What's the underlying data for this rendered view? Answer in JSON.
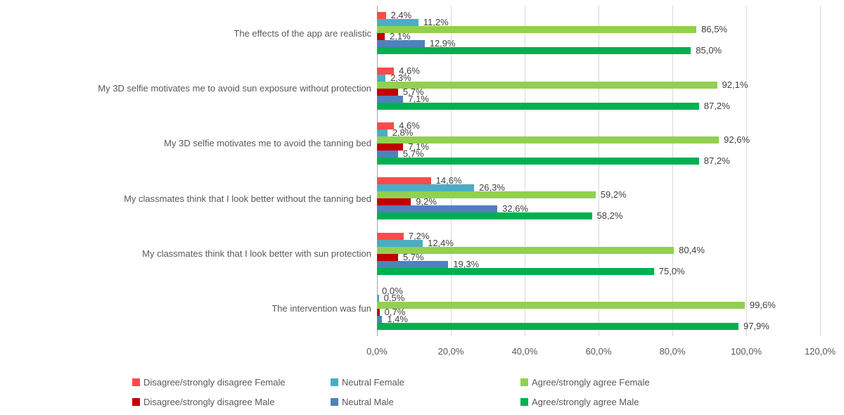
{
  "chart_data": {
    "type": "bar",
    "orientation": "horizontal",
    "title": "",
    "xlabel": "",
    "ylabel": "",
    "grid": true,
    "categories": [
      "The effects of the app are realistic",
      "My 3D selfie motivates me to avoid sun exposure without protection",
      "My 3D selfie motivates me to avoid the tanning bed",
      "My classmates think that I look better without the tanning bed",
      "My classmates think that I look better with sun protection",
      "The intervention was fun"
    ],
    "series": [
      {
        "name": "Disagree/strongly disagree Female",
        "color": "#f94b4b",
        "values": [
          2.4,
          4.6,
          4.6,
          14.6,
          7.2,
          0.0
        ],
        "labels": [
          "2,4%",
          "4,6%",
          "4,6%",
          "14,6%",
          "7,2%",
          "0,0%"
        ]
      },
      {
        "name": "Neutral Female",
        "color": "#4bacc6",
        "values": [
          11.2,
          2.3,
          2.8,
          26.3,
          12.4,
          0.5
        ],
        "labels": [
          "11,2%",
          "2,3%",
          "2,8%",
          "26,3%",
          "12,4%",
          "0,5%"
        ]
      },
      {
        "name": "Agree/strongly agree Female",
        "color": "#92d050",
        "values": [
          86.5,
          92.1,
          92.6,
          59.2,
          80.4,
          99.6
        ],
        "labels": [
          "86,5%",
          "92,1%",
          "92,6%",
          "59,2%",
          "80,4%",
          "99,6%"
        ]
      },
      {
        "name": "Disagree/strongly disagree Male",
        "color": "#c00000",
        "values": [
          2.1,
          5.7,
          7.1,
          9.2,
          5.7,
          0.7
        ],
        "labels": [
          "2,1%",
          "5,7%",
          "7,1%",
          "9,2%",
          "5,7%",
          "0,7%"
        ]
      },
      {
        "name": "Neutral Male",
        "color": "#4f81bd",
        "values": [
          12.9,
          7.1,
          5.7,
          32.6,
          19.3,
          1.4
        ],
        "labels": [
          "12,9%",
          "7,1%",
          "5,7%",
          "32,6%",
          "19,3%",
          "1,4%"
        ]
      },
      {
        "name": "Agree/strongly agree Male",
        "color": "#00b050",
        "values": [
          85.0,
          87.2,
          87.2,
          58.2,
          75.0,
          97.9
        ],
        "labels": [
          "85,0%",
          "87,2%",
          "87,2%",
          "58,2%",
          "75,0%",
          "97,9%"
        ]
      }
    ],
    "x_axis": {
      "max": 120,
      "tick_values": [
        0,
        20,
        40,
        60,
        80,
        100,
        120
      ],
      "ticks": [
        "0,0%",
        "20,0%",
        "40,0%",
        "60,0%",
        "80,0%",
        "100,0%",
        "120,0%"
      ]
    },
    "legend": {
      "position": "bottom",
      "rows": [
        [
          0,
          1,
          2
        ],
        [
          3,
          4,
          5
        ]
      ]
    }
  }
}
